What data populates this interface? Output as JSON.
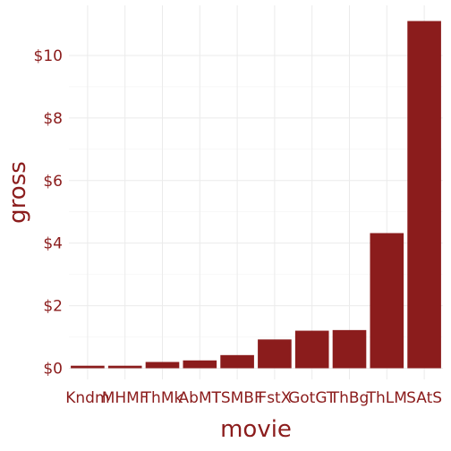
{
  "chart_data": {
    "type": "bar",
    "categories": [
      "Kndm",
      "MHMF",
      "ThMk",
      "AbMT",
      "TSMBF",
      "FstX",
      "GotGT",
      "ThBg",
      "ThLM",
      "SAtS"
    ],
    "values": [
      0.08,
      0.08,
      0.2,
      0.25,
      0.42,
      0.92,
      1.2,
      1.22,
      4.32,
      11.1
    ],
    "xlabel": "movie",
    "ylabel": "gross",
    "ylim": [
      0,
      11.1
    ],
    "yticks": [
      0,
      2,
      4,
      6,
      8,
      10
    ],
    "ytick_labels": [
      "$0",
      "$2",
      "$4",
      "$6",
      "$8",
      "$10"
    ],
    "bar_color": "#8b1c1c",
    "grid": true,
    "legend": "none"
  }
}
